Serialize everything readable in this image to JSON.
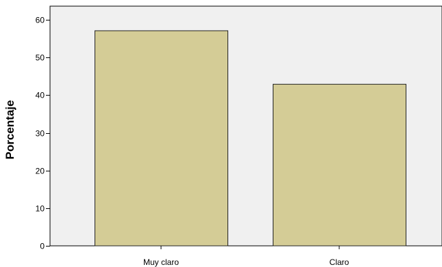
{
  "chart_data": {
    "type": "bar",
    "categories": [
      "Muy claro",
      "Claro"
    ],
    "values": [
      57.1,
      42.9
    ],
    "xlabel": "",
    "ylabel": "Porcentaje",
    "ylim": [
      0,
      60
    ],
    "yticks": [
      0,
      10,
      20,
      30,
      40,
      50,
      60
    ],
    "grid": false,
    "colors": {
      "plot_background": "#f0f0f0",
      "bar_fill": "#d4cc96",
      "bar_stroke": "#222222",
      "axis": "#000000"
    }
  }
}
